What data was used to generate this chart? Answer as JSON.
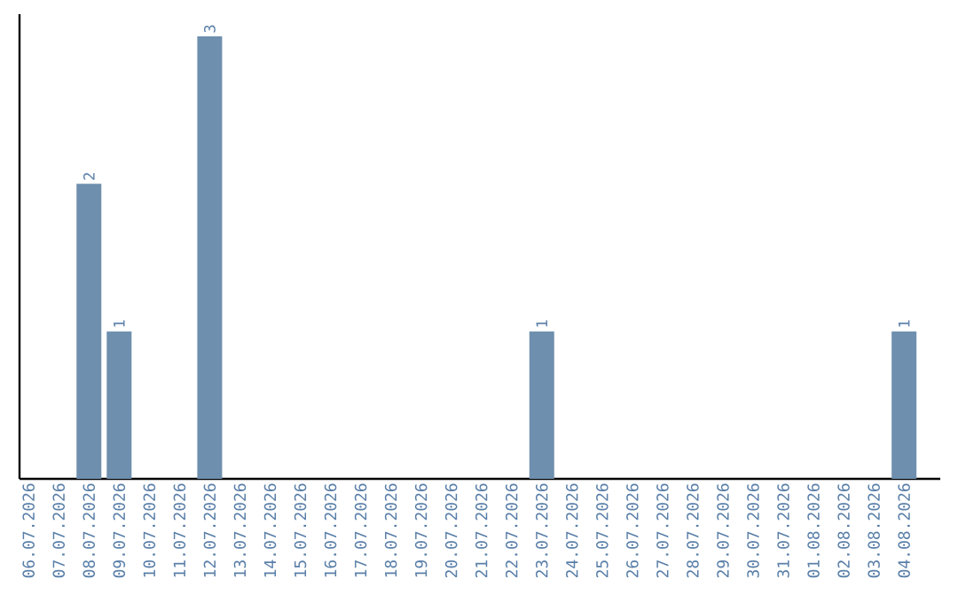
{
  "chart_data": {
    "type": "bar",
    "categories": [
      "06.07.2026",
      "07.07.2026",
      "08.07.2026",
      "09.07.2026",
      "10.07.2026",
      "11.07.2026",
      "12.07.2026",
      "13.07.2026",
      "14.07.2026",
      "15.07.2026",
      "16.07.2026",
      "17.07.2026",
      "18.07.2026",
      "19.07.2026",
      "20.07.2026",
      "21.07.2026",
      "22.07.2026",
      "23.07.2026",
      "24.07.2026",
      "25.07.2026",
      "26.07.2026",
      "27.07.2026",
      "28.07.2026",
      "29.07.2026",
      "30.07.2026",
      "31.07.2026",
      "01.08.2026",
      "02.08.2026",
      "03.08.2026",
      "04.08.2026"
    ],
    "values": [
      0,
      0,
      2,
      1,
      0,
      0,
      3,
      0,
      0,
      0,
      0,
      0,
      0,
      0,
      0,
      0,
      0,
      1,
      0,
      0,
      0,
      0,
      0,
      0,
      0,
      0,
      0,
      0,
      0,
      1
    ],
    "value_labels": [
      null,
      null,
      "2",
      "1",
      null,
      null,
      "3",
      null,
      null,
      null,
      null,
      null,
      null,
      null,
      null,
      null,
      null,
      "1",
      null,
      null,
      null,
      null,
      null,
      null,
      null,
      null,
      null,
      null,
      null,
      "1"
    ],
    "color": "#6e8fae",
    "ylim": [
      0,
      3.15
    ],
    "tick_labels": "x"
  }
}
